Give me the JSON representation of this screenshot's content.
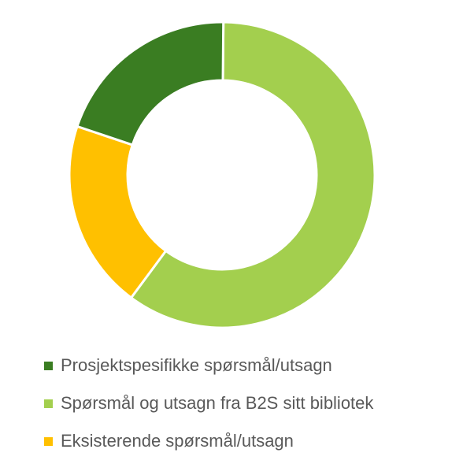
{
  "chart_data": {
    "type": "pie",
    "variant": "donut",
    "title": "",
    "categories": [
      "Prosjektspesifikke spørsmål/utsagn",
      "Spørsmål og utsagn fra B2S sitt bibliotek",
      "Eksisterende spørsmål/utsagn"
    ],
    "values": [
      20,
      60,
      20
    ],
    "colors": [
      "#3a7d22",
      "#a3cf4e",
      "#ffc000"
    ],
    "legend_position": "bottom",
    "slice_order": [
      1,
      2,
      0
    ]
  }
}
